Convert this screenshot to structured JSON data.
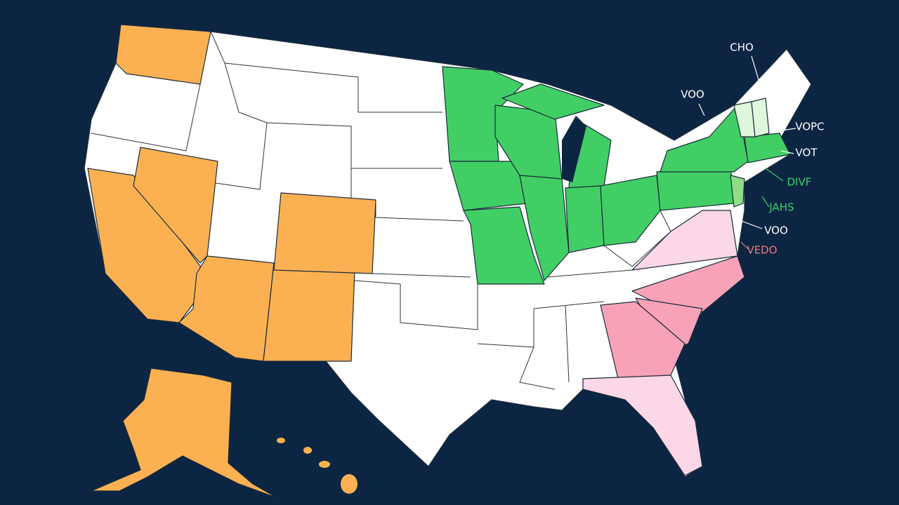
{
  "labels": [
    {
      "text": "CHO",
      "color": "#ffffff"
    },
    {
      "text": "VOO",
      "color": "#ffffff"
    },
    {
      "text": "VOPC",
      "color": "#ffffff"
    },
    {
      "text": "VOT",
      "color": "#ffffff"
    },
    {
      "text": "DIVF",
      "color": "#3ecf6a"
    },
    {
      "text": "JAHS",
      "color": "#3ecf6a"
    },
    {
      "text": "VOO",
      "color": "#ffffff"
    },
    {
      "text": "VEDO",
      "color": "#f07a7a"
    }
  ]
}
